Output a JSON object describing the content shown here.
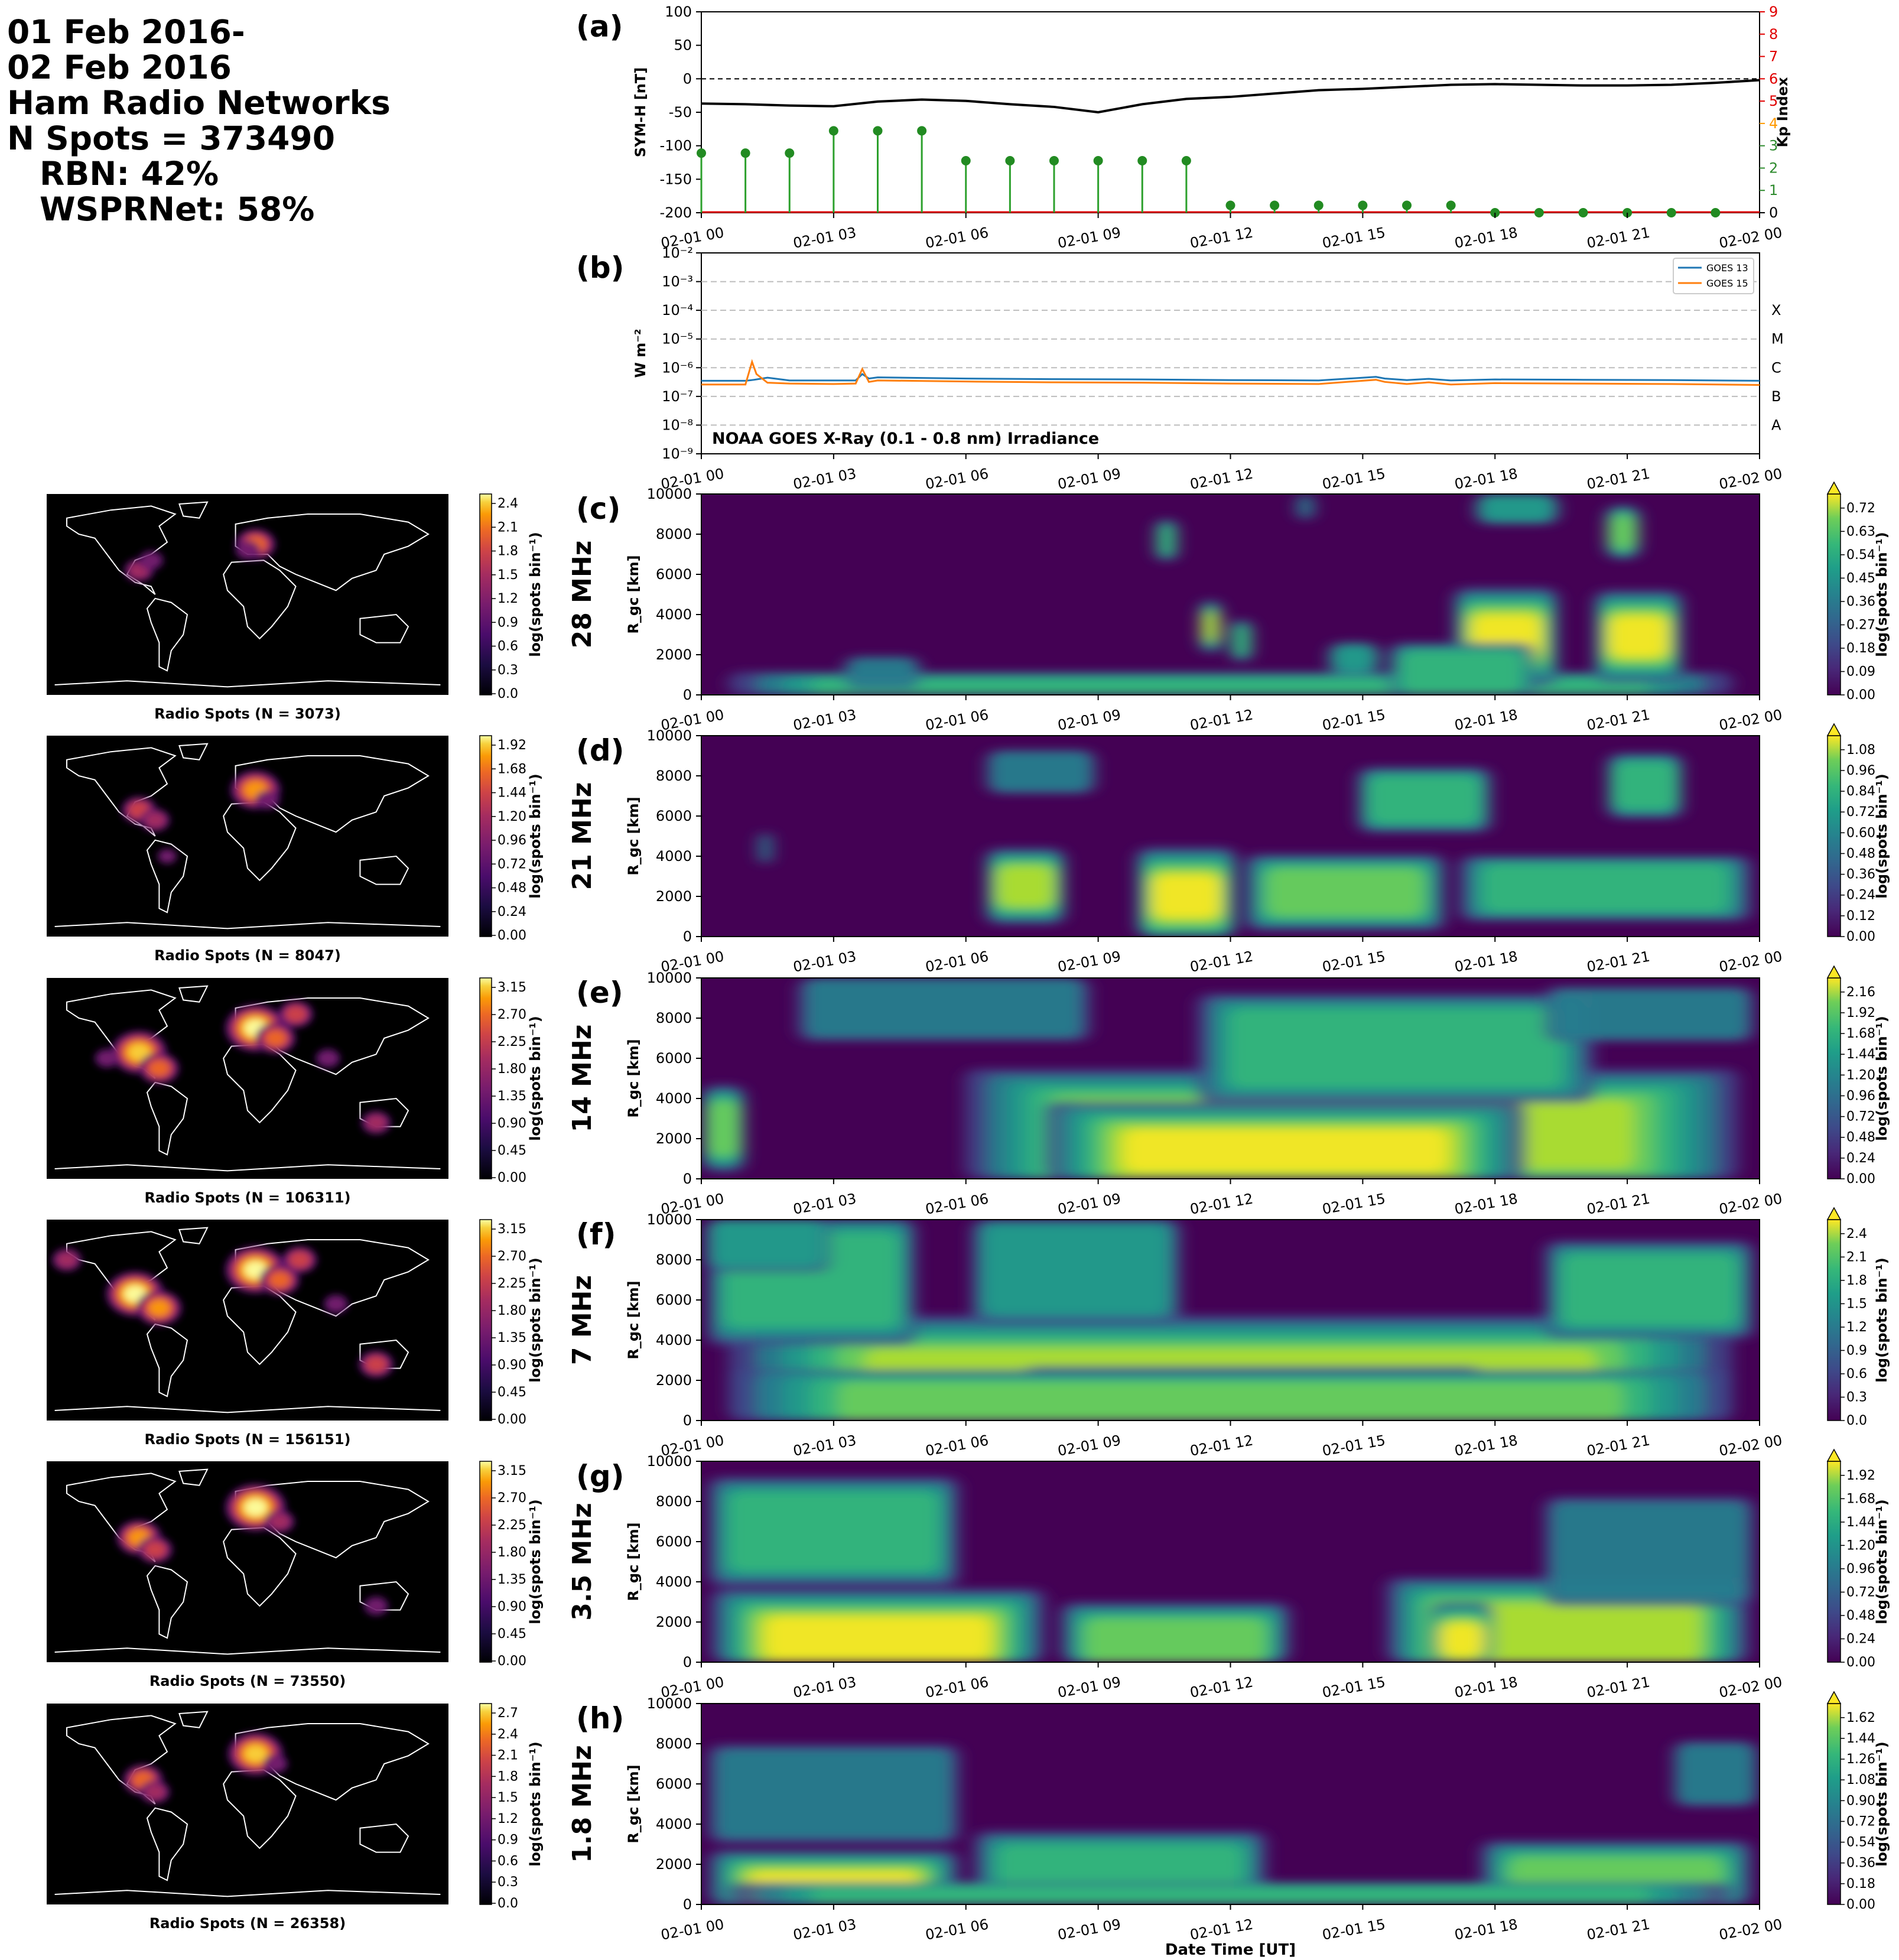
{
  "header": {
    "line1": "01 Feb 2016-",
    "line2": "02 Feb 2016",
    "line3": "Ham Radio Networks",
    "line4": "N Spots = 373490",
    "line5": "RBN: 42%",
    "line6": "WSPRNet: 58%"
  },
  "colors": {
    "symh": "#000000",
    "kp_stem": "#2ca02c",
    "kp_marker": "#228b22",
    "goes13": "#1f77b4",
    "goes15": "#ff7f0e",
    "kp_axis_red": "#e00000",
    "kp_axis_orange": "#ff9900",
    "kp_axis_green": "#2e8b2e",
    "map_bg": "#000000",
    "coast": "#ffffff",
    "viridis_low": "#440154",
    "viridis_high": "#fde725"
  },
  "time_ticks": [
    "02-01 00",
    "02-01 03",
    "02-01 06",
    "02-01 09",
    "02-01 12",
    "02-01 15",
    "02-01 18",
    "02-01 21",
    "02-02 00"
  ],
  "xlabel": "Date Time [UT]",
  "chart_data": [
    {
      "id": "a",
      "type": "line",
      "panel_label": "(a)",
      "ylabel": "SYM-H [nT]",
      "ylabel2": "Kp Index",
      "ylim": [
        -200,
        100
      ],
      "yticks": [
        "100",
        "50",
        "0",
        "-50",
        "-100",
        "-150",
        "-200"
      ],
      "ylim2": [
        0,
        9
      ],
      "yticks2": [
        "9",
        "8",
        "7",
        "6",
        "5",
        "4",
        "3",
        "2",
        "1",
        "0"
      ],
      "reference_line": 0,
      "series": [
        {
          "kind": "symh",
          "x": [
            0,
            1,
            2,
            3,
            4,
            5,
            6,
            7,
            8,
            9,
            10,
            11,
            12,
            13,
            14,
            15,
            16,
            17,
            18,
            19,
            20,
            21,
            22,
            23,
            24
          ],
          "values": [
            -37,
            -38,
            -40,
            -41,
            -34,
            -31,
            -33,
            -38,
            -42,
            -50,
            -38,
            -30,
            -27,
            -22,
            -17,
            -15,
            -12,
            -9,
            -8,
            -9,
            -10,
            -10,
            -9,
            -6,
            -2
          ]
        },
        {
          "kind": "kp",
          "x": [
            0,
            1,
            2,
            3,
            4,
            5,
            6,
            7,
            8,
            9,
            10,
            11,
            12,
            13,
            14,
            15,
            16,
            17,
            18,
            19,
            20,
            21,
            22,
            23
          ],
          "values": [
            2.67,
            2.67,
            2.67,
            3.67,
            3.67,
            3.67,
            2.33,
            2.33,
            2.33,
            2.33,
            2.33,
            2.33,
            0.33,
            0.33,
            0.33,
            0.33,
            0.33,
            0.33,
            0,
            0,
            0,
            0,
            0,
            0
          ]
        }
      ]
    },
    {
      "id": "b",
      "type": "line",
      "panel_label": "(b)",
      "ylabel": "W m⁻²",
      "scale": "log",
      "ylim": [
        1e-09,
        0.01
      ],
      "yticks": [
        "10⁻²",
        "10⁻³",
        "10⁻⁴",
        "10⁻⁵",
        "10⁻⁶",
        "10⁻⁷",
        "10⁻⁸",
        "10⁻⁹"
      ],
      "flare_classes": [
        "X",
        "M",
        "C",
        "B",
        "A"
      ],
      "annotation": "NOAA GOES X-Ray (0.1 - 0.8 nm) Irradiance",
      "legend": [
        "GOES 13",
        "GOES 15"
      ],
      "legend_position": "top-right",
      "series": [
        {
          "name": "GOES 13",
          "x": [
            0,
            1,
            1.2,
            1.5,
            2,
            3,
            3.5,
            3.65,
            3.8,
            4,
            6,
            8,
            10,
            12,
            14,
            15.3,
            15.5,
            16,
            16.5,
            17,
            18,
            20,
            22,
            24
          ],
          "values": [
            3.5e-07,
            3.5e-07,
            3.8e-07,
            4.5e-07,
            3.6e-07,
            3.6e-07,
            3.6e-07,
            6e-07,
            4.2e-07,
            4.6e-07,
            4.2e-07,
            4e-07,
            3.9e-07,
            3.7e-07,
            3.6e-07,
            4.8e-07,
            4.2e-07,
            3.7e-07,
            4.1e-07,
            3.6e-07,
            3.9e-07,
            3.8e-07,
            3.7e-07,
            3.5e-07
          ]
        },
        {
          "name": "GOES 15",
          "x": [
            0,
            1,
            1.15,
            1.25,
            1.5,
            2,
            3,
            3.5,
            3.65,
            3.8,
            4,
            6,
            8,
            10,
            12,
            14,
            15.3,
            15.5,
            16,
            16.5,
            17,
            18,
            20,
            22,
            24
          ],
          "values": [
            2.6e-07,
            2.6e-07,
            1.6e-06,
            6e-07,
            3e-07,
            2.8e-07,
            2.7e-07,
            2.8e-07,
            9e-07,
            3.2e-07,
            3.6e-07,
            3.3e-07,
            3.1e-07,
            3e-07,
            2.8e-07,
            2.7e-07,
            3.8e-07,
            3.2e-07,
            2.7e-07,
            3.1e-07,
            2.6e-07,
            2.9e-07,
            2.8e-07,
            2.7e-07,
            2.5e-07
          ]
        }
      ]
    },
    {
      "id": "c",
      "type": "heatmap",
      "panel_label": "(c)",
      "band": "28 MHz",
      "ylabel": "R_gc [km]",
      "ylim": [
        0,
        10000
      ],
      "yticks": [
        "10000",
        "8000",
        "6000",
        "4000",
        "2000",
        "0"
      ],
      "cbar_label": "log(spots bin⁻¹)",
      "cbar_ticks": [
        "0.72",
        "0.63",
        "0.54",
        "0.45",
        "0.36",
        "0.27",
        "0.18",
        "0.09",
        "0.00"
      ],
      "blobs": [
        [
          0,
          24,
          50,
          0.55,
          0.4
        ],
        [
          11.3,
          11.8,
          3400,
          0.9,
          0.5
        ],
        [
          12,
          12.5,
          2700,
          0.6,
          0.4
        ],
        [
          17,
          19.5,
          2900,
          1.0,
          0.9
        ],
        [
          20.2,
          22.3,
          2900,
          0.95,
          0.85
        ],
        [
          15.5,
          19,
          1100,
          0.5,
          0.55
        ],
        [
          20.5,
          21.3,
          8100,
          0.75,
          0.5
        ],
        [
          17.5,
          19.5,
          9300,
          0.4,
          0.3
        ],
        [
          10.3,
          10.8,
          7700,
          0.55,
          0.4
        ],
        [
          13.5,
          13.9,
          9500,
          0.35,
          0.3
        ],
        [
          3.2,
          5,
          1100,
          0.3,
          0.3
        ],
        [
          14.2,
          15.4,
          1800,
          0.4,
          0.3
        ]
      ],
      "max_density": 0.72
    },
    {
      "id": "d",
      "type": "heatmap",
      "panel_label": "(d)",
      "band": "21 MHz",
      "ylabel": "R_gc [km]",
      "ylim": [
        0,
        10000
      ],
      "yticks": [
        "10000",
        "8000",
        "6000",
        "4000",
        "2000",
        "0"
      ],
      "cbar_label": "log(spots bin⁻¹)",
      "cbar_ticks": [
        "1.08",
        "0.96",
        "0.84",
        "0.72",
        "0.60",
        "0.48",
        "0.36",
        "0.24",
        "0.12",
        "0.00"
      ],
      "blobs": [
        [
          6.4,
          8.3,
          2500,
          0.85,
          0.7
        ],
        [
          9.8,
          12.2,
          2000,
          1.0,
          0.9
        ],
        [
          12.2,
          17,
          2200,
          0.7,
          0.7
        ],
        [
          17,
          24,
          2400,
          0.6,
          0.6
        ],
        [
          14.8,
          18,
          6800,
          0.55,
          0.6
        ],
        [
          20.5,
          22.3,
          7500,
          0.5,
          0.6
        ],
        [
          6.4,
          9,
          8200,
          0.35,
          0.4
        ],
        [
          1.3,
          1.6,
          4400,
          0.35,
          0.3
        ]
      ],
      "max_density": 1.08
    },
    {
      "id": "e",
      "type": "heatmap",
      "panel_label": "(e)",
      "band": "14 MHz",
      "ylabel": "R_gc [km]",
      "ylim": [
        0,
        10000
      ],
      "yticks": [
        "10000",
        "8000",
        "6000",
        "4000",
        "2000",
        "0"
      ],
      "cbar_label": "log(spots bin⁻¹)",
      "cbar_ticks": [
        "2.16",
        "1.92",
        "1.68",
        "1.44",
        "1.20",
        "0.96",
        "0.72",
        "0.48",
        "0.24",
        "0.00"
      ],
      "blobs": [
        [
          0,
          1,
          2500,
          0.75,
          0.8
        ],
        [
          5.5,
          24,
          2200,
          0.85,
          1.2
        ],
        [
          7.5,
          19,
          1400,
          1.0,
          0.9
        ],
        [
          11,
          20.5,
          6500,
          0.6,
          1.0
        ],
        [
          2,
          9,
          8500,
          0.35,
          0.6
        ],
        [
          19,
          24,
          8200,
          0.3,
          0.5
        ]
      ],
      "max_density": 2.16
    },
    {
      "id": "f",
      "type": "heatmap",
      "panel_label": "(f)",
      "band": "7 MHz",
      "ylabel": "R_gc [km]",
      "ylim": [
        0,
        10000
      ],
      "yticks": [
        "10000",
        "8000",
        "6000",
        "4000",
        "2000",
        "0"
      ],
      "cbar_label": "log(spots bin⁻¹)",
      "cbar_ticks": [
        "2.4",
        "2.1",
        "1.8",
        "1.5",
        "1.2",
        "0.9",
        "0.6",
        "0.3",
        "0.0"
      ],
      "blobs": [
        [
          0,
          24,
          1700,
          0.8,
          1.3
        ],
        [
          7,
          18,
          800,
          1.0,
          0.7
        ],
        [
          0,
          24,
          900,
          0.7,
          0.6
        ],
        [
          0,
          5,
          7000,
          0.6,
          1.2
        ],
        [
          6,
          11,
          7500,
          0.45,
          1.0
        ],
        [
          19,
          24,
          6500,
          0.55,
          0.9
        ],
        [
          0,
          3,
          9000,
          0.45,
          0.6
        ]
      ],
      "max_density": 2.4
    },
    {
      "id": "g",
      "type": "heatmap",
      "panel_label": "(g)",
      "band": "3.5 MHz",
      "ylabel": "R_gc [km]",
      "ylim": [
        0,
        10000
      ],
      "yticks": [
        "10000",
        "8000",
        "6000",
        "4000",
        "2000",
        "0"
      ],
      "cbar_label": "log(spots bin⁻¹)",
      "cbar_ticks": [
        "1.92",
        "1.68",
        "1.44",
        "1.20",
        "0.96",
        "0.72",
        "0.48",
        "0.24",
        "0.00"
      ],
      "blobs": [
        [
          0,
          8,
          1200,
          0.95,
          0.9
        ],
        [
          8,
          13.5,
          800,
          0.75,
          0.8
        ],
        [
          15.3,
          24,
          1500,
          0.8,
          1.0
        ],
        [
          16.5,
          18,
          1100,
          1.0,
          0.7
        ],
        [
          0,
          6,
          6500,
          0.5,
          1.0
        ],
        [
          19,
          24,
          5500,
          0.35,
          1.0
        ]
      ],
      "max_density": 1.92
    },
    {
      "id": "h",
      "type": "heatmap",
      "panel_label": "(h)",
      "band": "1.8 MHz",
      "ylabel": "R_gc [km]",
      "ylim": [
        0,
        10000
      ],
      "yticks": [
        "10000",
        "8000",
        "6000",
        "4000",
        "2000",
        "0"
      ],
      "cbar_label": "log(spots bin⁻¹)",
      "cbar_ticks": [
        "1.62",
        "1.44",
        "1.26",
        "1.08",
        "0.90",
        "0.72",
        "0.54",
        "0.36",
        "0.18",
        "0.00"
      ],
      "blobs": [
        [
          0,
          6,
          800,
          1.0,
          0.7
        ],
        [
          6,
          13,
          1200,
          0.6,
          0.9
        ],
        [
          17.5,
          24,
          1000,
          0.75,
          0.8
        ],
        [
          0,
          6,
          5500,
          0.35,
          0.9
        ],
        [
          22,
          24,
          6500,
          0.3,
          0.6
        ],
        [
          0,
          24,
          300,
          0.5,
          0.3
        ]
      ],
      "max_density": 1.62
    },
    {
      "id": "map-28",
      "type": "heatmap",
      "kind": "map",
      "title": "Radio Spots (N = 3073)",
      "cbar_label": "log(spots bin⁻¹)",
      "cbar_ticks": [
        "2.4",
        "2.1",
        "1.8",
        "1.5",
        "1.2",
        "0.9",
        "0.6",
        "0.3",
        "0.0"
      ],
      "spots": [
        [
          0.23,
          0.38,
          0.4
        ],
        [
          0.26,
          0.33,
          0.3
        ],
        [
          0.52,
          0.25,
          0.6
        ],
        [
          0.5,
          0.28,
          0.3
        ]
      ]
    },
    {
      "id": "map-21",
      "type": "heatmap",
      "kind": "map",
      "title": "Radio Spots (N = 8047)",
      "cbar_label": "log(spots bin⁻¹)",
      "cbar_ticks": [
        "1.92",
        "1.68",
        "1.44",
        "1.20",
        "0.96",
        "0.72",
        "0.48",
        "0.24",
        "0.00"
      ],
      "spots": [
        [
          0.52,
          0.27,
          0.8
        ],
        [
          0.23,
          0.37,
          0.5
        ],
        [
          0.27,
          0.42,
          0.4
        ],
        [
          0.55,
          0.32,
          0.3
        ],
        [
          0.3,
          0.6,
          0.2
        ]
      ]
    },
    {
      "id": "map-14",
      "type": "heatmap",
      "kind": "map",
      "title": "Radio Spots (N = 106311)",
      "cbar_label": "log(spots bin⁻¹)",
      "cbar_ticks": [
        "3.15",
        "2.70",
        "2.25",
        "1.80",
        "1.35",
        "0.90",
        "0.45",
        "0.00"
      ],
      "spots": [
        [
          0.52,
          0.25,
          1.0
        ],
        [
          0.23,
          0.37,
          0.9
        ],
        [
          0.28,
          0.45,
          0.6
        ],
        [
          0.57,
          0.3,
          0.6
        ],
        [
          0.62,
          0.18,
          0.5
        ],
        [
          0.82,
          0.72,
          0.4
        ],
        [
          0.7,
          0.4,
          0.3
        ],
        [
          0.15,
          0.4,
          0.3
        ]
      ]
    },
    {
      "id": "map-7",
      "type": "heatmap",
      "kind": "map",
      "title": "Radio Spots (N = 156151)",
      "cbar_label": "log(spots bin⁻¹)",
      "cbar_ticks": [
        "3.15",
        "2.70",
        "2.25",
        "1.80",
        "1.35",
        "0.90",
        "0.45",
        "0.00"
      ],
      "spots": [
        [
          0.52,
          0.25,
          1.0
        ],
        [
          0.22,
          0.37,
          0.95
        ],
        [
          0.28,
          0.44,
          0.7
        ],
        [
          0.58,
          0.3,
          0.6
        ],
        [
          0.63,
          0.2,
          0.5
        ],
        [
          0.82,
          0.72,
          0.5
        ],
        [
          0.72,
          0.42,
          0.3
        ],
        [
          0.05,
          0.2,
          0.4
        ]
      ]
    },
    {
      "id": "map-3.5",
      "type": "heatmap",
      "kind": "map",
      "title": "Radio Spots (N = 73550)",
      "cbar_label": "log(spots bin⁻¹)",
      "cbar_ticks": [
        "3.15",
        "2.70",
        "2.25",
        "1.80",
        "1.35",
        "0.90",
        "0.45",
        "0.00"
      ],
      "spots": [
        [
          0.52,
          0.23,
          1.0
        ],
        [
          0.23,
          0.38,
          0.7
        ],
        [
          0.27,
          0.44,
          0.5
        ],
        [
          0.58,
          0.3,
          0.4
        ],
        [
          0.82,
          0.72,
          0.3
        ]
      ]
    },
    {
      "id": "map-1.8",
      "type": "heatmap",
      "kind": "map",
      "title": "Radio Spots (N = 26358)",
      "cbar_label": "log(spots bin⁻¹)",
      "cbar_ticks": [
        "2.7",
        "2.4",
        "2.1",
        "1.8",
        "1.5",
        "1.2",
        "0.9",
        "0.6",
        "0.3",
        "0.0"
      ],
      "spots": [
        [
          0.52,
          0.25,
          0.9
        ],
        [
          0.24,
          0.38,
          0.6
        ],
        [
          0.27,
          0.44,
          0.4
        ],
        [
          0.57,
          0.3,
          0.3
        ]
      ]
    }
  ]
}
